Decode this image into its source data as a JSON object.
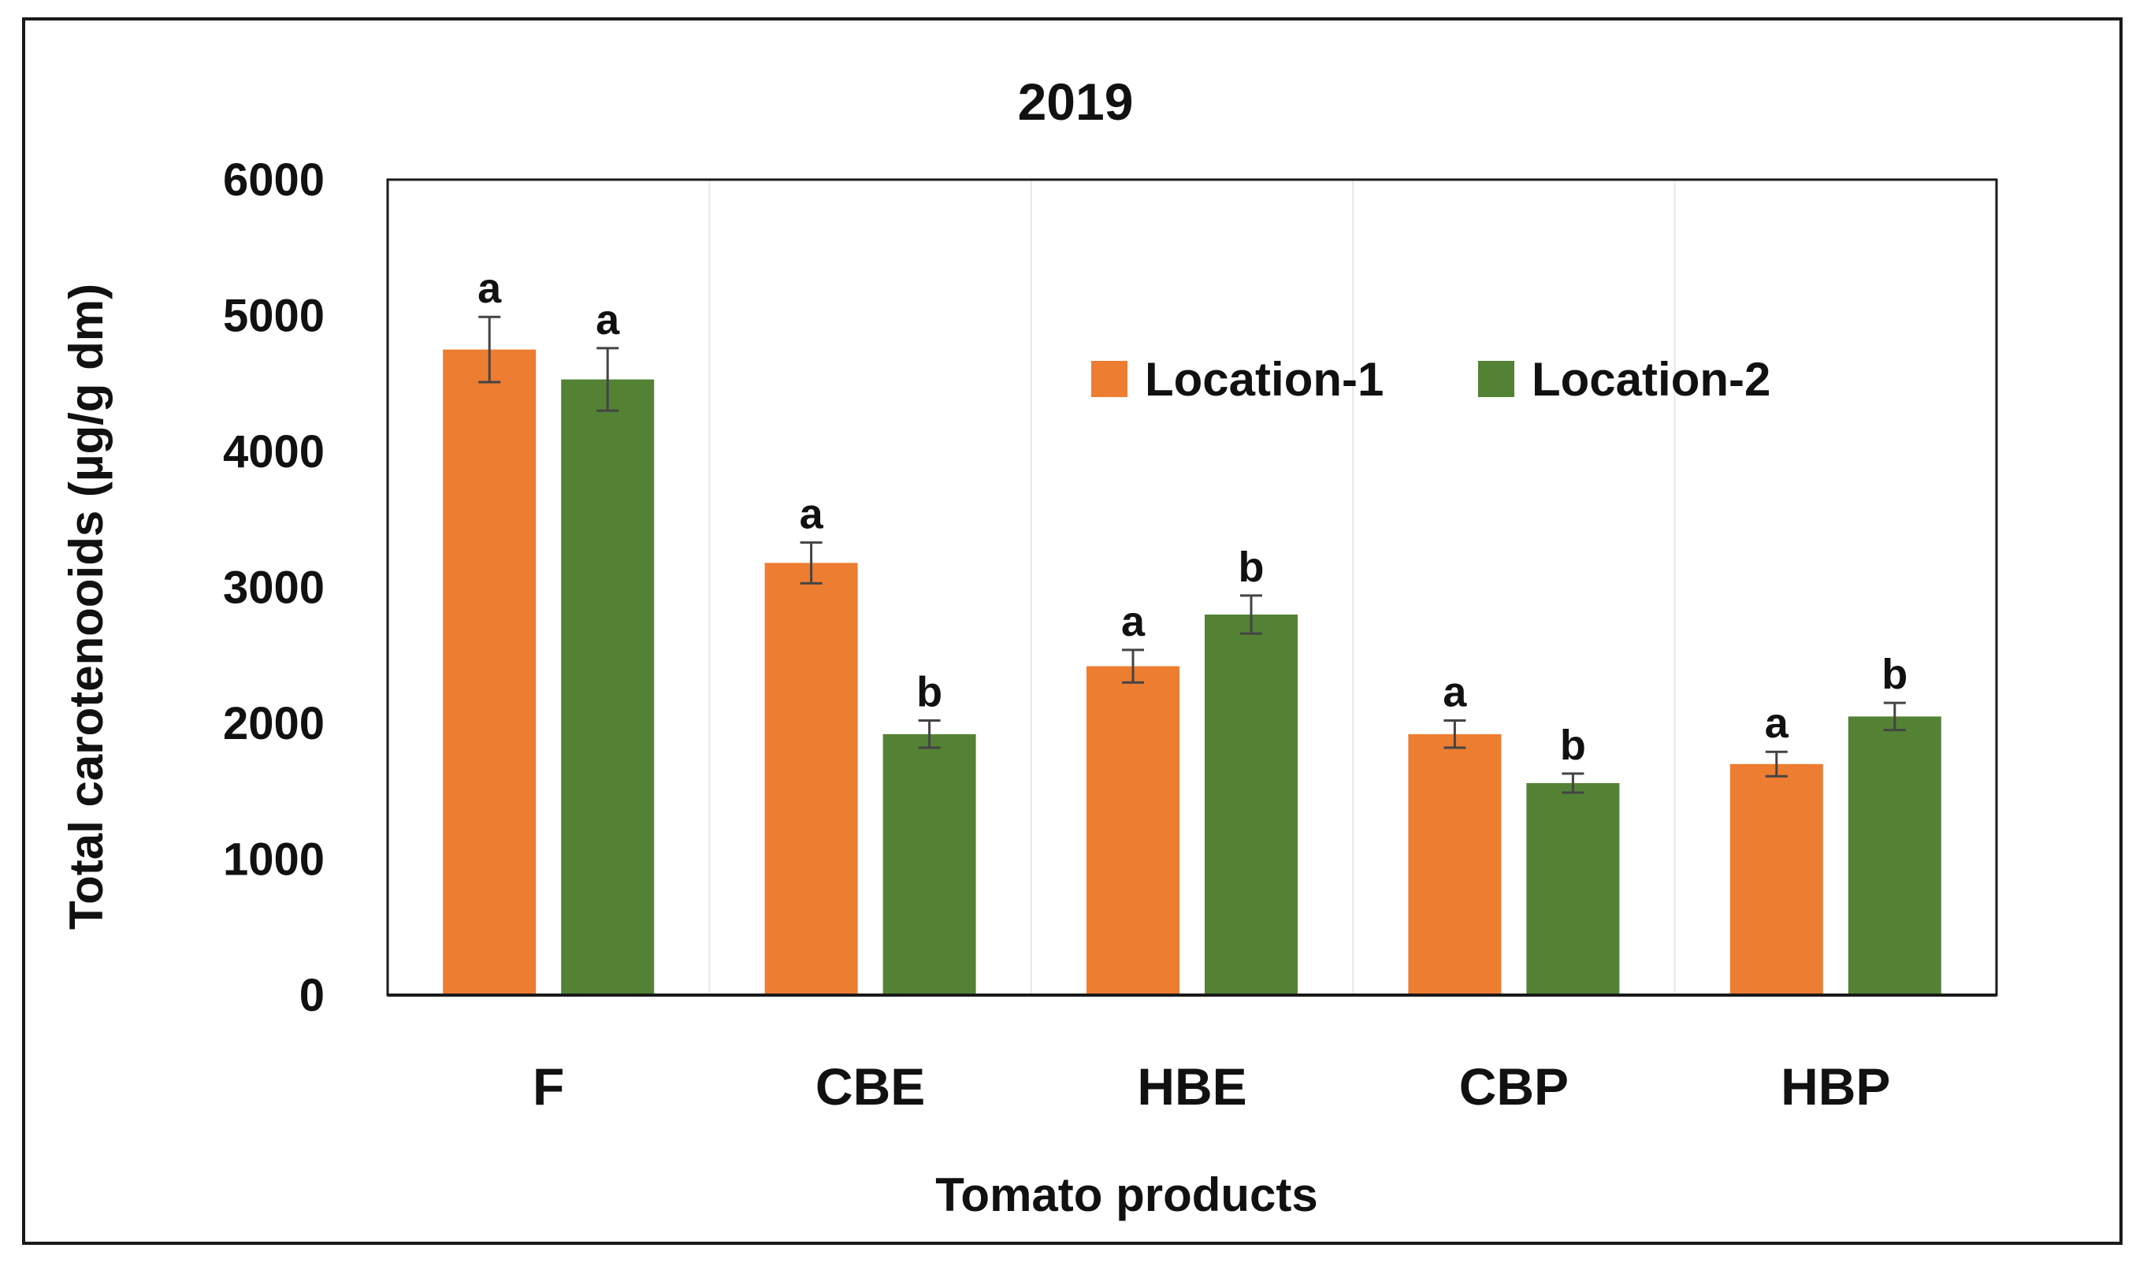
{
  "chart_data": {
    "type": "bar",
    "title": "2019",
    "xlabel": "Tomato products",
    "ylabel": "Total carotenooids (µg/g dm)",
    "categories": [
      "F",
      "CBE",
      "HBE",
      "CBP",
      "HBP"
    ],
    "ylim": [
      0,
      6000
    ],
    "yticks": [
      0,
      1000,
      2000,
      3000,
      4000,
      5000,
      6000
    ],
    "grid": "vertical category separators",
    "legend": "upper-right, horizontal",
    "series": [
      {
        "name": "Location-1",
        "color": "#ED7D31",
        "values": [
          4750,
          3180,
          2420,
          1920,
          1700
        ],
        "errors": [
          240,
          150,
          120,
          100,
          90
        ],
        "letters": [
          "a",
          "a",
          "a",
          "a",
          "a"
        ]
      },
      {
        "name": "Location-2",
        "color": "#548235",
        "values": [
          4530,
          1920,
          2800,
          1560,
          2050
        ],
        "errors": [
          230,
          100,
          140,
          70,
          100
        ],
        "letters": [
          "a",
          "b",
          "b",
          "b",
          "b"
        ]
      }
    ]
  }
}
